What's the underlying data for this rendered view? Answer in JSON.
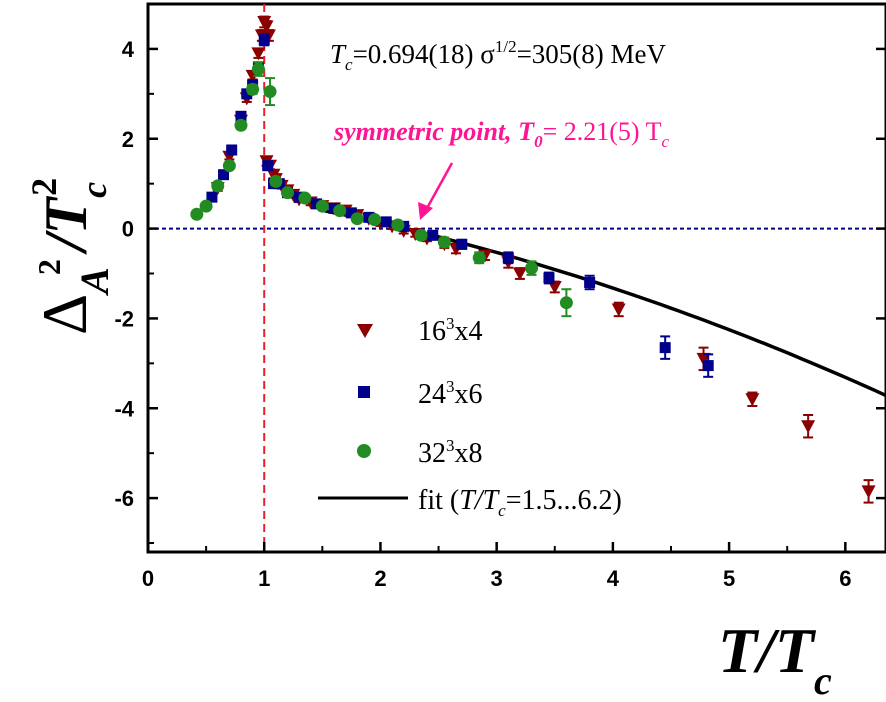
{
  "chart_data": {
    "type": "scatter",
    "xlabel": {
      "main": "T/T",
      "sub": "c"
    },
    "ylabel": {
      "main": "Δ",
      "sub": "A",
      "sup": "2",
      "divider": "/T",
      "sub2": "c",
      "sup2": "2"
    },
    "xlim": [
      0,
      6.35
    ],
    "ylim": [
      -7.2,
      5.0
    ],
    "x_ticks": [
      0,
      1,
      2,
      3,
      4,
      5,
      6
    ],
    "y_ticks": [
      4,
      2,
      0,
      -2,
      -4,
      -6
    ],
    "annotation_top": {
      "tc": "T",
      "tc_sub": "c",
      "tc_value": "=0.694(18) σ",
      "sigma_sup": "1/2",
      "scale": "=305(8) MeV"
    },
    "annotation_sym": {
      "text": "symmetric point, ",
      "t0": "T",
      "t0_sub": "0",
      "value": "= 2.21(5) T",
      "tc_sub": "c",
      "color": "#ff1493"
    },
    "colors": {
      "red": "#8b0000",
      "blue": "#00008b",
      "green": "#228b22",
      "fit": "#000000",
      "zero_line": "#00008b",
      "tc_line": "#e8202a"
    },
    "legend": [
      {
        "base": "16",
        "sup": "3",
        "tail": "x4",
        "marker": "triangle-down"
      },
      {
        "base": "24",
        "sup": "3",
        "tail": "x6",
        "marker": "square"
      },
      {
        "base": "32",
        "sup": "3",
        "tail": "x8",
        "marker": "circle"
      },
      {
        "text": "fit (",
        "italic": "T/T",
        "sub": "c",
        "tail": "=1.5...6.2)",
        "marker": "line"
      }
    ],
    "series": [
      {
        "name": "16³x4",
        "marker": "triangle-down",
        "points": [
          [
            0.6,
            0.9,
            0.06
          ],
          [
            0.7,
            1.6,
            0.06
          ],
          [
            0.8,
            2.4,
            0.07
          ],
          [
            0.85,
            2.9,
            0.08
          ],
          [
            0.9,
            3.4,
            0.08
          ],
          [
            0.95,
            3.9,
            0.1
          ],
          [
            0.98,
            4.3,
            0.12
          ],
          [
            1.0,
            4.6,
            0.12
          ],
          [
            1.02,
            4.5,
            0.12
          ],
          [
            1.04,
            4.3,
            0.12
          ],
          [
            1.02,
            1.5,
            0.1
          ],
          [
            1.05,
            1.4,
            0.08
          ],
          [
            1.08,
            1.2,
            0.08
          ],
          [
            1.1,
            1.1,
            0.08
          ],
          [
            1.15,
            0.95,
            0.06
          ],
          [
            1.2,
            0.85,
            0.06
          ],
          [
            1.25,
            0.75,
            0.06
          ],
          [
            1.3,
            0.65,
            0.06
          ],
          [
            1.4,
            0.58,
            0.06
          ],
          [
            1.5,
            0.5,
            0.06
          ],
          [
            1.6,
            0.45,
            0.06
          ],
          [
            1.7,
            0.4,
            0.06
          ],
          [
            1.8,
            0.3,
            0.06
          ],
          [
            1.9,
            0.22,
            0.06
          ],
          [
            2.0,
            0.12,
            0.06
          ],
          [
            2.1,
            0.05,
            0.06
          ],
          [
            2.2,
            -0.05,
            0.06
          ],
          [
            2.3,
            -0.12,
            0.06
          ],
          [
            2.4,
            -0.22,
            0.06
          ],
          [
            2.55,
            -0.35,
            0.08
          ],
          [
            2.65,
            -0.45,
            0.1
          ],
          [
            2.9,
            -0.6,
            0.1
          ],
          [
            3.1,
            -0.75,
            0.12
          ],
          [
            3.2,
            -1.0,
            0.12
          ],
          [
            3.5,
            -1.3,
            0.12
          ],
          [
            4.05,
            -1.8,
            0.15
          ],
          [
            4.78,
            -2.9,
            0.25
          ],
          [
            5.2,
            -3.8,
            0.15
          ],
          [
            5.68,
            -4.4,
            0.25
          ],
          [
            6.2,
            -5.85,
            0.25
          ]
        ]
      },
      {
        "name": "24³x6",
        "marker": "square",
        "points": [
          [
            0.55,
            0.7,
            0.06
          ],
          [
            0.65,
            1.2,
            0.06
          ],
          [
            0.72,
            1.75,
            0.06
          ],
          [
            0.8,
            2.5,
            0.07
          ],
          [
            0.85,
            3.0,
            0.08
          ],
          [
            0.9,
            3.2,
            0.08
          ],
          [
            0.95,
            3.6,
            0.1
          ],
          [
            1.0,
            4.2,
            0.12
          ],
          [
            1.03,
            1.4,
            0.08
          ],
          [
            1.08,
            1.0,
            0.08
          ],
          [
            1.13,
            1.0,
            0.06
          ],
          [
            1.2,
            0.8,
            0.06
          ],
          [
            1.3,
            0.7,
            0.06
          ],
          [
            1.45,
            0.55,
            0.06
          ],
          [
            1.6,
            0.45,
            0.06
          ],
          [
            1.75,
            0.35,
            0.06
          ],
          [
            1.9,
            0.25,
            0.06
          ],
          [
            2.05,
            0.15,
            0.06
          ],
          [
            2.2,
            0.05,
            0.06
          ],
          [
            2.45,
            -0.15,
            0.08
          ],
          [
            2.7,
            -0.35,
            0.1
          ],
          [
            3.1,
            -0.65,
            0.12
          ],
          [
            3.45,
            -1.1,
            0.12
          ],
          [
            3.8,
            -1.2,
            0.15
          ],
          [
            4.45,
            -2.65,
            0.25
          ],
          [
            4.82,
            -3.05,
            0.25
          ]
        ]
      },
      {
        "name": "32³x8",
        "marker": "circle",
        "points": [
          [
            0.42,
            0.32,
            0.06
          ],
          [
            0.5,
            0.5,
            0.06
          ],
          [
            0.6,
            0.95,
            0.06
          ],
          [
            0.7,
            1.4,
            0.06
          ],
          [
            0.8,
            2.3,
            0.08
          ],
          [
            0.9,
            3.1,
            0.1
          ],
          [
            0.95,
            3.55,
            0.15
          ],
          [
            1.05,
            3.05,
            0.3
          ],
          [
            1.1,
            1.05,
            0.08
          ],
          [
            1.2,
            0.8,
            0.06
          ],
          [
            1.35,
            0.68,
            0.06
          ],
          [
            1.5,
            0.5,
            0.06
          ],
          [
            1.65,
            0.4,
            0.06
          ],
          [
            1.8,
            0.22,
            0.06
          ],
          [
            1.95,
            0.2,
            0.06
          ],
          [
            2.15,
            0.08,
            0.06
          ],
          [
            2.35,
            -0.15,
            0.08
          ],
          [
            2.55,
            -0.3,
            0.1
          ],
          [
            2.85,
            -0.65,
            0.12
          ],
          [
            3.3,
            -0.88,
            0.15
          ],
          [
            3.6,
            -1.65,
            0.3
          ]
        ]
      }
    ],
    "fit": {
      "x_range": [
        1.5,
        6.35
      ],
      "coef": [
        -0.27,
        0.045,
        -0.018,
        0.52
      ]
    }
  }
}
